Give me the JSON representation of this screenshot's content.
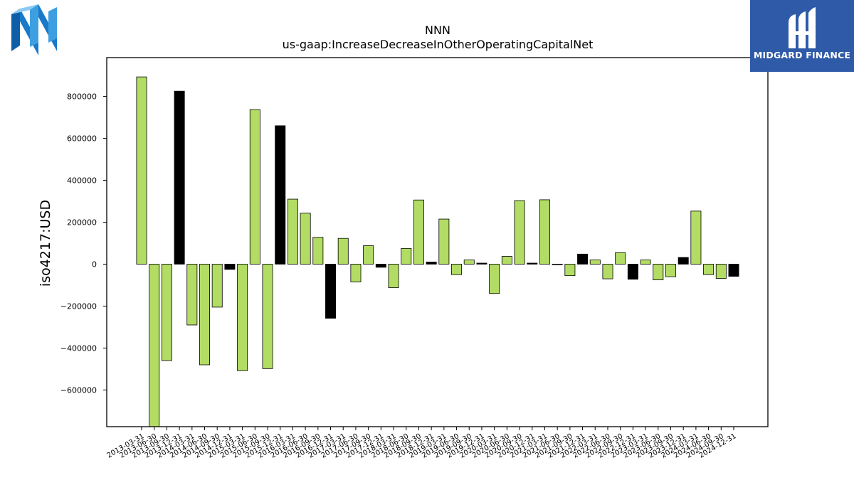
{
  "logos": {
    "left_text": "NN",
    "right_brand": "MIDGARD FINANCE"
  },
  "colors": {
    "positive": "#b2dc64",
    "highlight": "#000000",
    "edge": "#000000"
  },
  "chart_data": {
    "type": "bar",
    "title": "NNN",
    "subtitle": "us-gaap:IncreaseDecreaseInOtherOperatingCapitalNet",
    "xlabel": "",
    "ylabel": "iso4217:USD",
    "ylim": [
      -775000,
      985000
    ],
    "yticks": [
      -600000,
      -400000,
      -200000,
      0,
      200000,
      400000,
      600000,
      800000
    ],
    "grid": false,
    "categories": [
      "2013-03-31",
      "2013-06-30",
      "2013-09-30",
      "2013-12-31",
      "2014-03-31",
      "2014-06-30",
      "2014-09-30",
      "2014-12-31",
      "2015-03-31",
      "2015-06-30",
      "2015-09-30",
      "2015-12-31",
      "2016-03-31",
      "2016-06-30",
      "2016-09-30",
      "2016-12-31",
      "2017-03-31",
      "2017-06-30",
      "2017-09-30",
      "2017-12-31",
      "2018-03-31",
      "2018-06-30",
      "2018-09-30",
      "2018-12-31",
      "2019-03-31",
      "2019-06-30",
      "2019-09-30",
      "2019-12-31",
      "2020-03-31",
      "2020-06-30",
      "2020-09-30",
      "2020-12-31",
      "2021-03-31",
      "2021-06-30",
      "2021-09-30",
      "2021-12-31",
      "2022-03-31",
      "2022-06-30",
      "2022-09-30",
      "2022-12-31",
      "2023-03-31",
      "2023-06-30",
      "2023-09-30",
      "2023-12-31",
      "2024-03-31",
      "2024-06-30",
      "2024-09-30",
      "2024-12-31"
    ],
    "values": [
      893000,
      -780000,
      -460000,
      825000,
      -290000,
      -480000,
      -205000,
      -25000,
      -508000,
      737000,
      -498000,
      660000,
      310000,
      243000,
      128000,
      -258000,
      123000,
      -85000,
      88000,
      -15000,
      -112000,
      75000,
      306000,
      10000,
      215000,
      -50000,
      20000,
      5000,
      -140000,
      37000,
      303000,
      5000,
      307000,
      -3000,
      -55000,
      48000,
      20000,
      -70000,
      55000,
      -72000,
      20000,
      -75000,
      -60000,
      32000,
      253000,
      -50000,
      -68000,
      -58000
    ],
    "highlight": [
      false,
      false,
      false,
      true,
      false,
      false,
      false,
      true,
      false,
      false,
      false,
      true,
      false,
      false,
      false,
      true,
      false,
      false,
      false,
      true,
      false,
      false,
      false,
      true,
      false,
      false,
      false,
      true,
      false,
      false,
      false,
      true,
      false,
      false,
      false,
      true,
      false,
      false,
      false,
      true,
      false,
      false,
      false,
      true,
      false,
      false,
      false,
      true
    ]
  }
}
